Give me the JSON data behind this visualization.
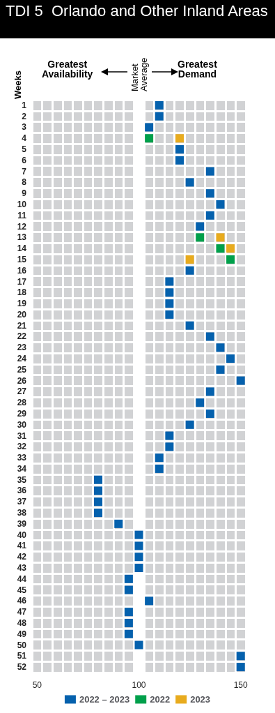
{
  "chart_data": {
    "type": "scatter",
    "orientation": "horizontal",
    "title": "TDI 5  Orlando and Other Inland Areas",
    "ylabel": "Weeks",
    "categories": [
      "1",
      "2",
      "3",
      "4",
      "5",
      "6",
      "7",
      "8",
      "9",
      "10",
      "11",
      "12",
      "13",
      "14",
      "15",
      "16",
      "17",
      "18",
      "19",
      "20",
      "21",
      "22",
      "23",
      "24",
      "25",
      "26",
      "27",
      "28",
      "29",
      "30",
      "31",
      "32",
      "33",
      "34",
      "35",
      "36",
      "37",
      "38",
      "39",
      "40",
      "41",
      "42",
      "43",
      "44",
      "45",
      "46",
      "47",
      "48",
      "49",
      "50",
      "51",
      "52"
    ],
    "series": [
      {
        "name": "2022 – 2023",
        "color": "#0561ad",
        "values": [
          110,
          110,
          105,
          null,
          120,
          120,
          135,
          125,
          135,
          140,
          135,
          130,
          null,
          null,
          null,
          125,
          115,
          115,
          115,
          115,
          125,
          135,
          140,
          145,
          140,
          150,
          135,
          130,
          135,
          125,
          115,
          115,
          110,
          110,
          80,
          80,
          80,
          80,
          90,
          100,
          100,
          100,
          100,
          95,
          95,
          105,
          95,
          95,
          95,
          100,
          150,
          150
        ]
      },
      {
        "name": "2022",
        "color": "#00a04b",
        "values": [
          null,
          null,
          null,
          105,
          null,
          null,
          null,
          null,
          null,
          null,
          null,
          null,
          130,
          140,
          145,
          null,
          null,
          null,
          null,
          null,
          null,
          null,
          null,
          null,
          null,
          null,
          null,
          null,
          null,
          null,
          null,
          null,
          null,
          null,
          null,
          null,
          null,
          null,
          null,
          null,
          null,
          null,
          null,
          null,
          null,
          null,
          null,
          null,
          null,
          null,
          null,
          null
        ]
      },
      {
        "name": "2023",
        "color": "#e8ab1e",
        "values": [
          null,
          null,
          null,
          120,
          null,
          null,
          null,
          null,
          null,
          null,
          null,
          null,
          140,
          145,
          125,
          null,
          null,
          null,
          null,
          null,
          null,
          null,
          null,
          null,
          null,
          null,
          null,
          null,
          null,
          null,
          null,
          null,
          null,
          null,
          null,
          null,
          null,
          null,
          null,
          null,
          null,
          null,
          null,
          null,
          null,
          null,
          null,
          null,
          null,
          null,
          null,
          null
        ]
      }
    ],
    "xlim": [
      47.5,
      152.5
    ],
    "xticks": [
      50,
      100,
      150
    ],
    "marker": "square",
    "grid": true,
    "legend": "bottom",
    "bands": [
      {
        "axis": "x",
        "from": 97.5,
        "to": 102.5,
        "label": "Market Average",
        "color": "#ffffff"
      }
    ],
    "annotations": [
      "Greatest Availability",
      "Greatest Demand"
    ]
  }
}
